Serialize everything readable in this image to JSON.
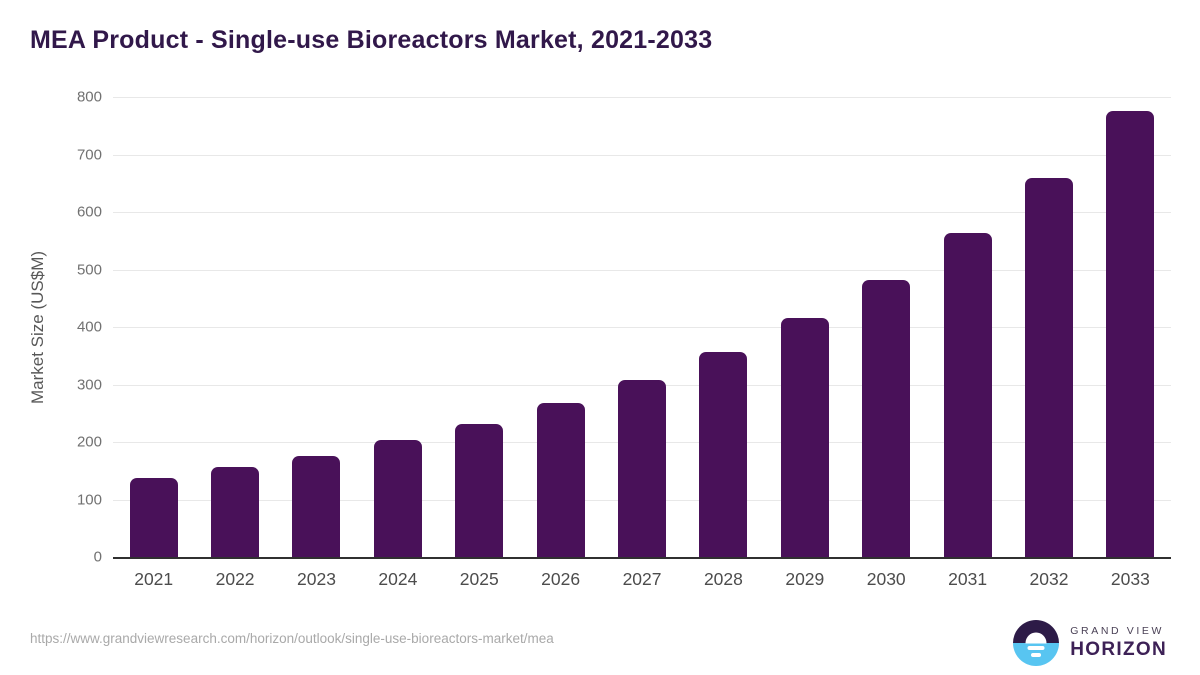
{
  "title": "MEA Product - Single-use Bioreactors Market, 2021-2033",
  "chart_data": {
    "type": "bar",
    "title": "MEA Product - Single-use Bioreactors Market, 2021-2033",
    "categories": [
      "2021",
      "2022",
      "2023",
      "2024",
      "2025",
      "2026",
      "2027",
      "2028",
      "2029",
      "2030",
      "2031",
      "2032",
      "2033"
    ],
    "values": [
      137,
      157,
      176,
      203,
      232,
      268,
      308,
      357,
      415,
      482,
      563,
      660,
      775
    ],
    "xlabel": "",
    "ylabel": "Market Size (US$M)",
    "ylim": [
      0,
      800
    ],
    "yticks": [
      0,
      100,
      200,
      300,
      400,
      500,
      600,
      700,
      800
    ],
    "grid": "horizontal",
    "legend_position": "none"
  },
  "colors": {
    "bar_fill": "#491159",
    "title_text": "#31184a",
    "gridline": "#e8e8e8",
    "axis_line": "#303030",
    "y_tick_text": "#717171",
    "x_tick_text": "#4c4c4c",
    "logo_dark_purple": "#2d1b47",
    "logo_light_blue": "#58c5f1"
  },
  "footer": {
    "source_url": "https://www.grandviewresearch.com/horizon/outlook/single-use-bioreactors-market/mea",
    "logo": {
      "line1": "GRAND VIEW",
      "line2": "HORIZON"
    }
  }
}
